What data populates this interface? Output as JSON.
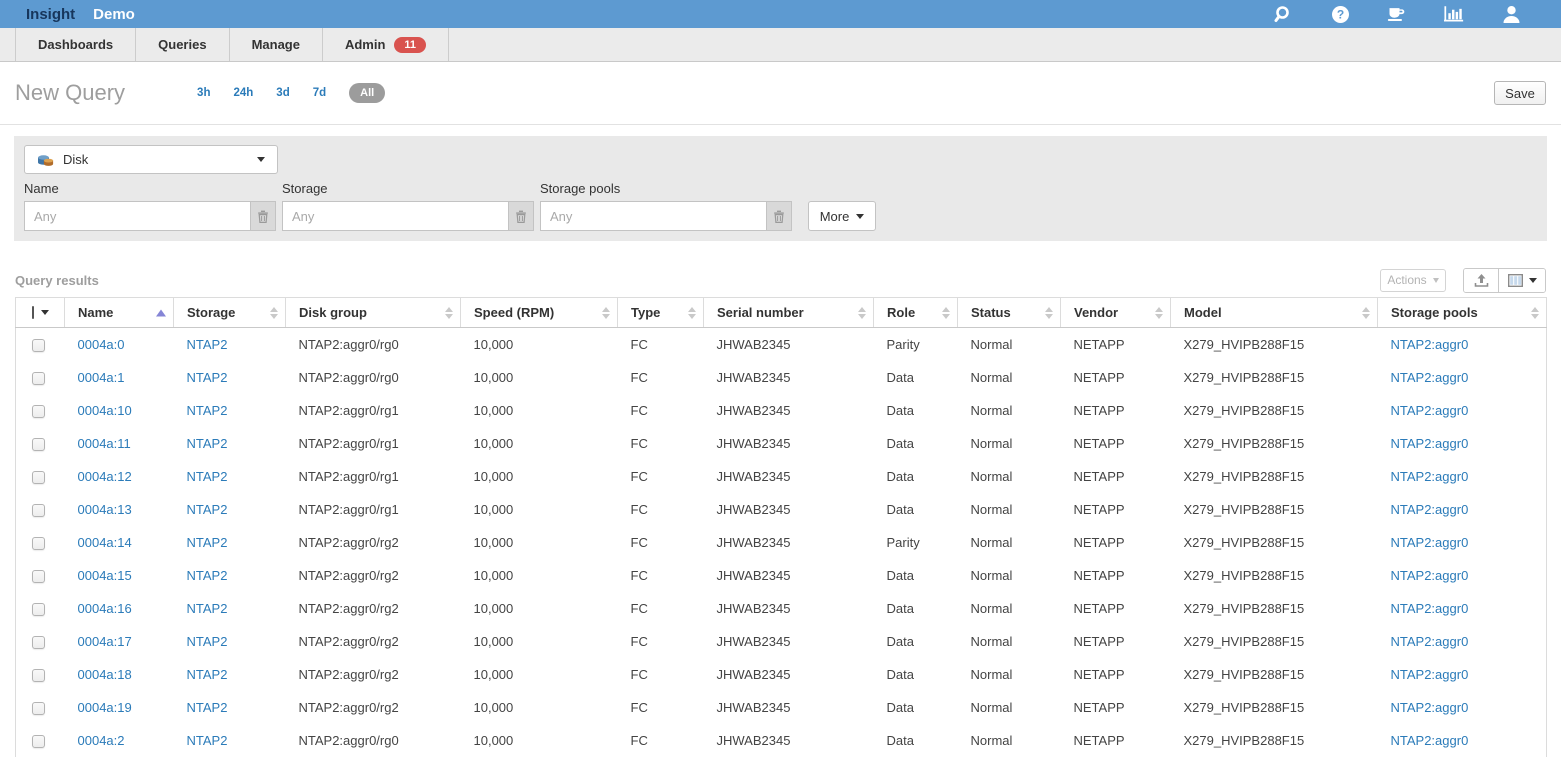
{
  "glyphs": {
    "caret_down": "▾"
  },
  "colors": {
    "topbar_bg": "#5d9ad1",
    "brand_text": "#17365c",
    "badge_red": "#d9534f",
    "link_blue": "#2b7bb9",
    "panel_gray": "#e9e9e9",
    "sort_active": "#8585d6",
    "pill_gray": "#9c9c9c"
  },
  "topbar": {
    "brand": "Insight",
    "environment": "Demo",
    "icons": [
      "search-icon",
      "help-icon",
      "java-client-icon",
      "reports-icon",
      "user-icon"
    ]
  },
  "nav": {
    "tabs": [
      {
        "label": "Dashboards"
      },
      {
        "label": "Queries"
      },
      {
        "label": "Manage"
      },
      {
        "label": "Admin",
        "badge": "11"
      }
    ]
  },
  "page": {
    "title": "New Query",
    "time_filters": [
      {
        "label": "3h",
        "active": false
      },
      {
        "label": "24h",
        "active": false
      },
      {
        "label": "3d",
        "active": false
      },
      {
        "label": "7d",
        "active": false
      },
      {
        "label": "All",
        "active": true
      }
    ],
    "save_label": "Save"
  },
  "query_builder": {
    "entity": {
      "label": "Disk",
      "icon": "disk-icon"
    },
    "fields": [
      {
        "label": "Name",
        "placeholder": "Any"
      },
      {
        "label": "Storage",
        "placeholder": "Any"
      },
      {
        "label": "Storage pools",
        "placeholder": "Any"
      }
    ],
    "more_label": "More"
  },
  "results": {
    "title": "Query results",
    "actions_label": "Actions",
    "toolbar_icons": [
      "export-icon",
      "column-chooser-icon"
    ],
    "columns": [
      {
        "key": "select",
        "label": "",
        "type": "checkbox"
      },
      {
        "key": "name",
        "label": "Name",
        "sort": "asc",
        "link": true
      },
      {
        "key": "storage",
        "label": "Storage",
        "link": true
      },
      {
        "key": "disk_group",
        "label": "Disk group"
      },
      {
        "key": "speed",
        "label": "Speed (RPM)"
      },
      {
        "key": "type",
        "label": "Type"
      },
      {
        "key": "serial",
        "label": "Serial number"
      },
      {
        "key": "role",
        "label": "Role"
      },
      {
        "key": "status",
        "label": "Status"
      },
      {
        "key": "vendor",
        "label": "Vendor"
      },
      {
        "key": "model",
        "label": "Model"
      },
      {
        "key": "storage_pools",
        "label": "Storage pools",
        "link": true
      }
    ],
    "rows": [
      {
        "name": "0004a:0",
        "storage": "NTAP2",
        "disk_group": "NTAP2:aggr0/rg0",
        "speed": "10,000",
        "type": "FC",
        "serial": "JHWAB2345",
        "role": "Parity",
        "status": "Normal",
        "vendor": "NETAPP",
        "model": "X279_HVIPB288F15",
        "storage_pools": "NTAP2:aggr0"
      },
      {
        "name": "0004a:1",
        "storage": "NTAP2",
        "disk_group": "NTAP2:aggr0/rg0",
        "speed": "10,000",
        "type": "FC",
        "serial": "JHWAB2345",
        "role": "Data",
        "status": "Normal",
        "vendor": "NETAPP",
        "model": "X279_HVIPB288F15",
        "storage_pools": "NTAP2:aggr0"
      },
      {
        "name": "0004a:10",
        "storage": "NTAP2",
        "disk_group": "NTAP2:aggr0/rg1",
        "speed": "10,000",
        "type": "FC",
        "serial": "JHWAB2345",
        "role": "Data",
        "status": "Normal",
        "vendor": "NETAPP",
        "model": "X279_HVIPB288F15",
        "storage_pools": "NTAP2:aggr0"
      },
      {
        "name": "0004a:11",
        "storage": "NTAP2",
        "disk_group": "NTAP2:aggr0/rg1",
        "speed": "10,000",
        "type": "FC",
        "serial": "JHWAB2345",
        "role": "Data",
        "status": "Normal",
        "vendor": "NETAPP",
        "model": "X279_HVIPB288F15",
        "storage_pools": "NTAP2:aggr0"
      },
      {
        "name": "0004a:12",
        "storage": "NTAP2",
        "disk_group": "NTAP2:aggr0/rg1",
        "speed": "10,000",
        "type": "FC",
        "serial": "JHWAB2345",
        "role": "Data",
        "status": "Normal",
        "vendor": "NETAPP",
        "model": "X279_HVIPB288F15",
        "storage_pools": "NTAP2:aggr0"
      },
      {
        "name": "0004a:13",
        "storage": "NTAP2",
        "disk_group": "NTAP2:aggr0/rg1",
        "speed": "10,000",
        "type": "FC",
        "serial": "JHWAB2345",
        "role": "Data",
        "status": "Normal",
        "vendor": "NETAPP",
        "model": "X279_HVIPB288F15",
        "storage_pools": "NTAP2:aggr0"
      },
      {
        "name": "0004a:14",
        "storage": "NTAP2",
        "disk_group": "NTAP2:aggr0/rg2",
        "speed": "10,000",
        "type": "FC",
        "serial": "JHWAB2345",
        "role": "Parity",
        "status": "Normal",
        "vendor": "NETAPP",
        "model": "X279_HVIPB288F15",
        "storage_pools": "NTAP2:aggr0"
      },
      {
        "name": "0004a:15",
        "storage": "NTAP2",
        "disk_group": "NTAP2:aggr0/rg2",
        "speed": "10,000",
        "type": "FC",
        "serial": "JHWAB2345",
        "role": "Data",
        "status": "Normal",
        "vendor": "NETAPP",
        "model": "X279_HVIPB288F15",
        "storage_pools": "NTAP2:aggr0"
      },
      {
        "name": "0004a:16",
        "storage": "NTAP2",
        "disk_group": "NTAP2:aggr0/rg2",
        "speed": "10,000",
        "type": "FC",
        "serial": "JHWAB2345",
        "role": "Data",
        "status": "Normal",
        "vendor": "NETAPP",
        "model": "X279_HVIPB288F15",
        "storage_pools": "NTAP2:aggr0"
      },
      {
        "name": "0004a:17",
        "storage": "NTAP2",
        "disk_group": "NTAP2:aggr0/rg2",
        "speed": "10,000",
        "type": "FC",
        "serial": "JHWAB2345",
        "role": "Data",
        "status": "Normal",
        "vendor": "NETAPP",
        "model": "X279_HVIPB288F15",
        "storage_pools": "NTAP2:aggr0"
      },
      {
        "name": "0004a:18",
        "storage": "NTAP2",
        "disk_group": "NTAP2:aggr0/rg2",
        "speed": "10,000",
        "type": "FC",
        "serial": "JHWAB2345",
        "role": "Data",
        "status": "Normal",
        "vendor": "NETAPP",
        "model": "X279_HVIPB288F15",
        "storage_pools": "NTAP2:aggr0"
      },
      {
        "name": "0004a:19",
        "storage": "NTAP2",
        "disk_group": "NTAP2:aggr0/rg2",
        "speed": "10,000",
        "type": "FC",
        "serial": "JHWAB2345",
        "role": "Data",
        "status": "Normal",
        "vendor": "NETAPP",
        "model": "X279_HVIPB288F15",
        "storage_pools": "NTAP2:aggr0"
      },
      {
        "name": "0004a:2",
        "storage": "NTAP2",
        "disk_group": "NTAP2:aggr0/rg0",
        "speed": "10,000",
        "type": "FC",
        "serial": "JHWAB2345",
        "role": "Data",
        "status": "Normal",
        "vendor": "NETAPP",
        "model": "X279_HVIPB288F15",
        "storage_pools": "NTAP2:aggr0"
      }
    ]
  }
}
